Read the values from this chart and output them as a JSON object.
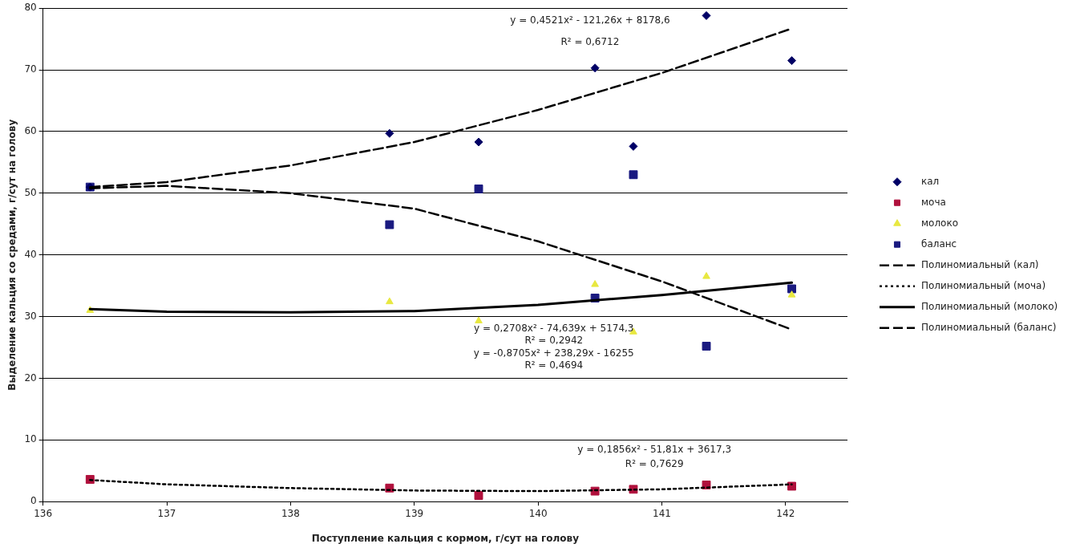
{
  "chart_data": {
    "type": "scatter",
    "xlabel": "Поступление кальция с кормом, г/сут на голову",
    "ylabel": "Выделение кальция со средами, г/сут на голову",
    "x": [
      136.38,
      138.8,
      139.52,
      140.46,
      140.77,
      141.36,
      142.05
    ],
    "xlim": [
      136,
      142.5
    ],
    "xticks": [
      136,
      137,
      138,
      139,
      140,
      141,
      142
    ],
    "ylim": [
      0,
      80
    ],
    "yticks": [
      0,
      10,
      20,
      30,
      40,
      50,
      60,
      70,
      80
    ],
    "grid": "y",
    "legend": "right",
    "series": [
      {
        "name": "кал",
        "color": "#000066",
        "marker": "diamond",
        "values": [
          51,
          59.7,
          58.3,
          70.3,
          57.6,
          78.8,
          71.5
        ]
      },
      {
        "name": "моча",
        "color": "#b0103c",
        "marker": "square",
        "values": [
          3.6,
          2.2,
          1.0,
          1.7,
          2.0,
          2.7,
          2.5
        ]
      },
      {
        "name": "молоко",
        "color": "#e8e840",
        "marker": "triangle",
        "values": [
          31,
          32.4,
          29.3,
          35.2,
          27.5,
          36.5,
          33.5
        ]
      },
      {
        "name": "баланс",
        "color": "#1a1a80",
        "marker": "square",
        "values": [
          51,
          44.9,
          50.7,
          33.0,
          53.0,
          25.2,
          34.5
        ]
      },
      {
        "name": "Полиномиальный (кал)",
        "type": "line",
        "color": "#000000",
        "marker": "none",
        "line_style": "dashed",
        "x": [
          136.38,
          137,
          138,
          139,
          140,
          141,
          142.05
        ],
        "values": [
          51,
          51.8,
          54.5,
          58.3,
          63.5,
          69.5,
          76.7
        ]
      },
      {
        "name": "Полиномиальный (моча)",
        "type": "line",
        "color": "#000000",
        "marker": "none",
        "line_style": "dotted",
        "x": [
          136.38,
          137,
          138,
          139,
          140,
          141,
          142.05
        ],
        "values": [
          3.5,
          2.8,
          2.2,
          1.8,
          1.7,
          2.0,
          2.8
        ]
      },
      {
        "name": "Полиномиальный (молоко)",
        "type": "line",
        "color": "#000000",
        "marker": "none",
        "line_style": "solid",
        "x": [
          136.38,
          137,
          138,
          139,
          140,
          141,
          142.05
        ],
        "values": [
          31.2,
          30.8,
          30.7,
          30.9,
          31.9,
          33.5,
          35.5
        ]
      },
      {
        "name": "Полиномиальный (баланс)",
        "type": "line",
        "color": "#000000",
        "marker": "none",
        "line_style": "dashed",
        "x": [
          136.38,
          137,
          138,
          139,
          140,
          141,
          142.05
        ],
        "values": [
          50.8,
          51.2,
          50.0,
          47.5,
          42.2,
          35.7,
          27.9
        ]
      }
    ],
    "annotations": [
      "y = 0,4521x² - 121,26x + 8178,6",
      "R² = 0,6712",
      "y = 0,2708x² - 74,639x + 5174,3",
      "R² = 0,2942",
      "y = -0,8705x² + 238,29x - 16255",
      "R² = 0,4694",
      "y = 0,1856x² - 51,81x + 3617,3",
      "R² = 0,7629"
    ]
  }
}
